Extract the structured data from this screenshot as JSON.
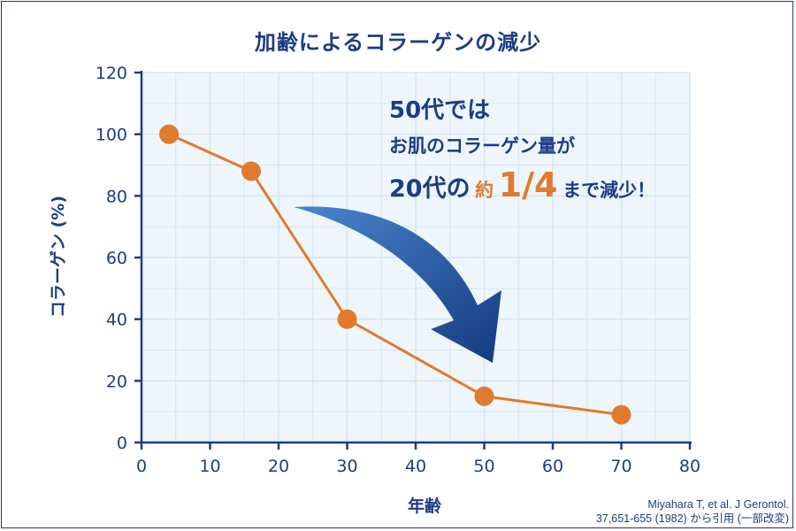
{
  "title": "加齢によるコラーゲンの減少",
  "source": {
    "line1": "Miyahara T, et al. J Gerontol.",
    "line2": "37,651-655 (1982) から引用 (一部改変)"
  },
  "annotation": {
    "line1": "50代では",
    "line2": "お肌のコラーゲン量が",
    "line3_a": "20代の",
    "line3_b": "約",
    "line3_c": "1/4",
    "line3_d": "まで減少！"
  },
  "colors": {
    "navy": "#1e3c84",
    "orange": "#e07a2e",
    "grid": "#d4e6f2",
    "plot_bg": "#eef6fc",
    "arrow_light": "#4a86cf",
    "arrow_dark": "#143a7e"
  },
  "chart_data": {
    "type": "line",
    "xlabel": "年齢",
    "ylabel": "コラーゲン (%)",
    "xlim": [
      0,
      80
    ],
    "ylim": [
      0,
      120
    ],
    "xticks": [
      0,
      10,
      20,
      30,
      40,
      50,
      60,
      70,
      80
    ],
    "yticks": [
      0,
      20,
      40,
      60,
      80,
      100,
      120
    ],
    "grid": true,
    "series": [
      {
        "x": [
          4,
          16,
          30,
          50,
          70
        ],
        "y": [
          100,
          88,
          40,
          15,
          9
        ]
      }
    ]
  }
}
